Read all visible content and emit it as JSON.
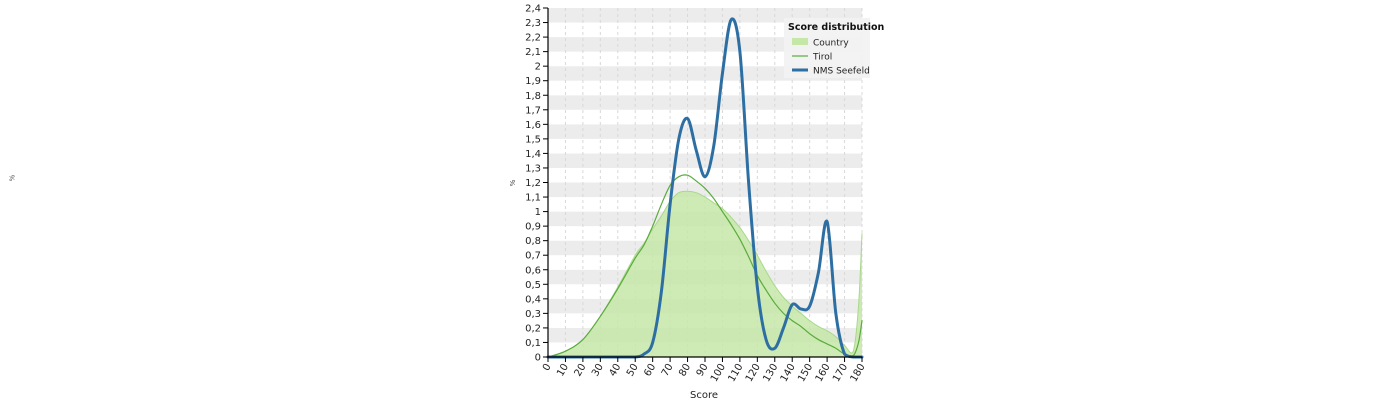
{
  "chart_data": {
    "type": "area",
    "title": "Score distribution",
    "xlabel": "Score",
    "ylabel": "%",
    "xlim": [
      0,
      180
    ],
    "ylim": [
      0,
      2.4
    ],
    "x_ticks": [
      0,
      10,
      20,
      30,
      40,
      50,
      60,
      70,
      80,
      90,
      100,
      110,
      120,
      130,
      140,
      150,
      160,
      170,
      180
    ],
    "y_ticks": [
      {
        "value": 0,
        "label": "0"
      },
      {
        "value": 0.1,
        "label": "0,1"
      },
      {
        "value": 0.2,
        "label": "0,2"
      },
      {
        "value": 0.3,
        "label": "0,3"
      },
      {
        "value": 0.4,
        "label": "0,4"
      },
      {
        "value": 0.5,
        "label": "0,5"
      },
      {
        "value": 0.6,
        "label": "0,6"
      },
      {
        "value": 0.7,
        "label": "0,7"
      },
      {
        "value": 0.8,
        "label": "0,8"
      },
      {
        "value": 0.9,
        "label": "0,9"
      },
      {
        "value": 1.0,
        "label": "1"
      },
      {
        "value": 1.1,
        "label": "1,1"
      },
      {
        "value": 1.2,
        "label": "1,2"
      },
      {
        "value": 1.3,
        "label": "1,3"
      },
      {
        "value": 1.4,
        "label": "1,4"
      },
      {
        "value": 1.5,
        "label": "1,5"
      },
      {
        "value": 1.6,
        "label": "1,6"
      },
      {
        "value": 1.7,
        "label": "1,7"
      },
      {
        "value": 1.8,
        "label": "1,8"
      },
      {
        "value": 1.9,
        "label": "1,9"
      },
      {
        "value": 2.0,
        "label": "2"
      },
      {
        "value": 2.1,
        "label": "2,1"
      },
      {
        "value": 2.2,
        "label": "2,2"
      },
      {
        "value": 2.3,
        "label": "2,3"
      },
      {
        "value": 2.4,
        "label": "2,4"
      }
    ],
    "legend_position": "top-right",
    "series": [
      {
        "name": "Country",
        "style": "area",
        "color": "#c5e8a8",
        "x": [
          0,
          10,
          20,
          30,
          40,
          50,
          55,
          60,
          65,
          70,
          75,
          80,
          85,
          90,
          95,
          100,
          105,
          110,
          115,
          120,
          125,
          130,
          135,
          140,
          145,
          150,
          155,
          160,
          165,
          170,
          175,
          178,
          180
        ],
        "y": [
          0,
          0.04,
          0.12,
          0.28,
          0.48,
          0.7,
          0.78,
          0.88,
          0.97,
          1.07,
          1.13,
          1.14,
          1.13,
          1.1,
          1.06,
          1.02,
          0.96,
          0.89,
          0.8,
          0.7,
          0.59,
          0.49,
          0.41,
          0.35,
          0.3,
          0.25,
          0.21,
          0.18,
          0.14,
          0.08,
          0.04,
          0.35,
          0.85
        ]
      },
      {
        "name": "Tirol",
        "style": "line",
        "color": "#5aab3c",
        "x": [
          0,
          10,
          20,
          30,
          40,
          50,
          55,
          60,
          65,
          70,
          75,
          80,
          85,
          90,
          95,
          100,
          105,
          110,
          115,
          120,
          125,
          130,
          135,
          140,
          145,
          150,
          155,
          160,
          165,
          170,
          175,
          178,
          180
        ],
        "y": [
          0,
          0.04,
          0.12,
          0.28,
          0.47,
          0.68,
          0.77,
          0.9,
          1.05,
          1.18,
          1.24,
          1.25,
          1.21,
          1.16,
          1.09,
          1.0,
          0.91,
          0.81,
          0.69,
          0.56,
          0.46,
          0.37,
          0.3,
          0.25,
          0.21,
          0.16,
          0.12,
          0.09,
          0.06,
          0.02,
          0.01,
          0.1,
          0.25
        ]
      },
      {
        "name": "NMS Seefeld",
        "style": "line",
        "color": "#2e6fa3",
        "x": [
          0,
          40,
          50,
          55,
          60,
          65,
          70,
          75,
          80,
          85,
          90,
          95,
          100,
          105,
          110,
          115,
          120,
          125,
          130,
          135,
          140,
          145,
          150,
          155,
          160,
          165,
          170,
          175,
          180
        ],
        "y": [
          0,
          0,
          0,
          0.02,
          0.1,
          0.45,
          1.05,
          1.5,
          1.64,
          1.42,
          1.24,
          1.45,
          1.95,
          2.32,
          2.1,
          1.2,
          0.48,
          0.12,
          0.06,
          0.2,
          0.36,
          0.33,
          0.35,
          0.58,
          0.93,
          0.3,
          0.02,
          0,
          0
        ]
      }
    ]
  },
  "stray_glyph": "%"
}
